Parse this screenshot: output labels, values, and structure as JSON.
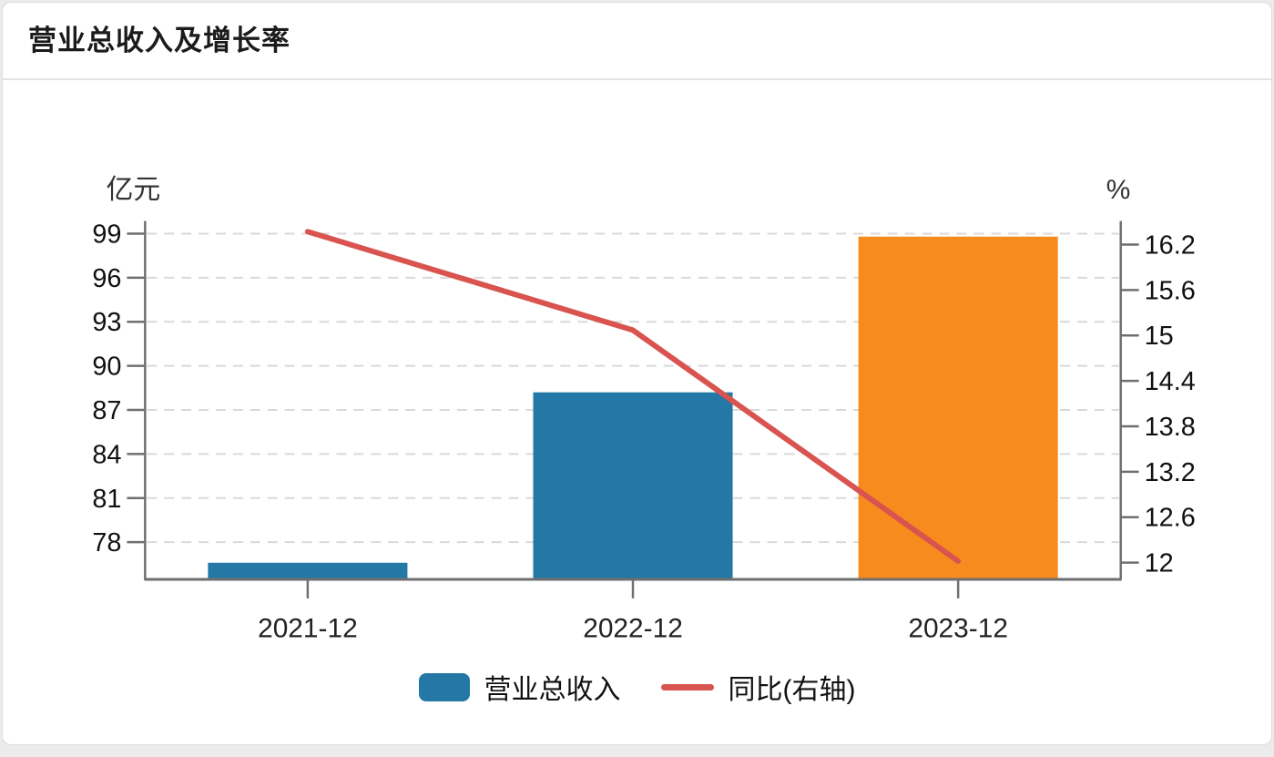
{
  "header": {
    "title": "营业总收入及增长率"
  },
  "chart_data": {
    "type": "bar+line",
    "title": "营业总收入及增长率",
    "categories": [
      "2021-12",
      "2022-12",
      "2023-12"
    ],
    "series": [
      {
        "name": "营业总收入",
        "type": "bar",
        "yaxis": "left",
        "unit": "亿元",
        "values": [
          76.6,
          88.2,
          98.8
        ],
        "colors": [
          "#2478a6",
          "#2478a6",
          "#f78b1e"
        ]
      },
      {
        "name": "同比(右轴)",
        "type": "line",
        "yaxis": "right",
        "unit": "%",
        "values": [
          16.37,
          15.07,
          12.02
        ],
        "color": "#d9534f"
      }
    ],
    "left_axis": {
      "unit_label": "亿元",
      "ticks": [
        78,
        81,
        84,
        87,
        90,
        93,
        96,
        99
      ],
      "range": [
        75.47,
        99.86
      ]
    },
    "right_axis": {
      "unit_label": "%",
      "ticks": [
        12,
        12.6,
        13.2,
        13.8,
        14.4,
        15,
        15.6,
        16.2
      ],
      "range": [
        11.78,
        16.51
      ]
    },
    "legend": [
      {
        "label": "营业总收入",
        "swatch": "bar",
        "color": "#2478a6"
      },
      {
        "label": "同比(右轴)",
        "swatch": "line",
        "color": "#d9534f"
      }
    ],
    "grid": {
      "horizontal": true,
      "style": "dashed",
      "color": "#d9d9d9"
    },
    "legend_position": "bottom"
  },
  "colors": {
    "bar_blue": "#2478a6",
    "bar_orange": "#f78b1e",
    "line_red": "#d9534f",
    "axis_line": "#6f6f6f",
    "grid_line": "#d9d9d9",
    "tick_text": "#111111",
    "title_text": "#1b1b1b",
    "divider": "#e4e4e4",
    "page_background": "#ebebeb",
    "card_background": "#ffffff"
  }
}
